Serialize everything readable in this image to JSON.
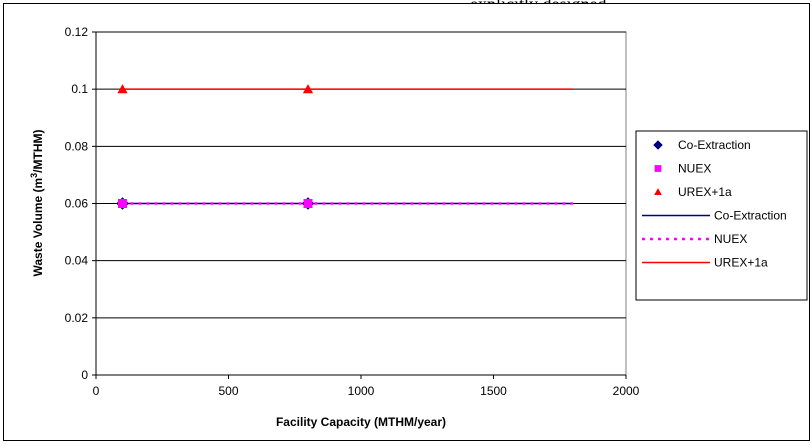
{
  "top_caption": "explicitly designed",
  "chart_data": {
    "type": "line",
    "title": "",
    "xlabel": "Facility Capacity (MTHM/year)",
    "ylabel_parts": [
      "Waste Volume (m",
      "3",
      "/MTHM)"
    ],
    "xlim": [
      0,
      2000
    ],
    "ylim": [
      0,
      0.12
    ],
    "xticks": [
      0,
      500,
      1000,
      1500,
      2000
    ],
    "yticks": [
      0,
      0.02,
      0.04,
      0.06,
      0.08,
      0.1,
      0.12
    ],
    "ytick_labels": [
      "0",
      "0.02",
      "0.04",
      "0.06",
      "0.08",
      "0.1",
      "0.12"
    ],
    "grid": "horizontal major gridlines",
    "legend_position": "right",
    "marker_series": [
      {
        "name": "Co-Extraction",
        "marker": "diamond",
        "color": "#000080",
        "x": [
          100,
          800
        ],
        "y": [
          0.06,
          0.06
        ]
      },
      {
        "name": "NUEX",
        "marker": "square",
        "color": "#ff00ff",
        "x": [
          100,
          800
        ],
        "y": [
          0.06,
          0.06
        ]
      },
      {
        "name": "UREX+1a",
        "marker": "triangle",
        "color": "#ff0000",
        "x": [
          100,
          800
        ],
        "y": [
          0.1,
          0.1
        ]
      }
    ],
    "line_series": [
      {
        "name": "Co-Extraction",
        "style": "solid",
        "color": "#000080",
        "x": [
          100,
          1800
        ],
        "y": [
          0.06,
          0.06
        ]
      },
      {
        "name": "NUEX",
        "style": "dotted",
        "color": "#ff00ff",
        "x": [
          100,
          1800
        ],
        "y": [
          0.06,
          0.06
        ]
      },
      {
        "name": "UREX+1a",
        "style": "solid",
        "color": "#ff0000",
        "x": [
          100,
          1800
        ],
        "y": [
          0.1,
          0.1
        ]
      }
    ]
  }
}
